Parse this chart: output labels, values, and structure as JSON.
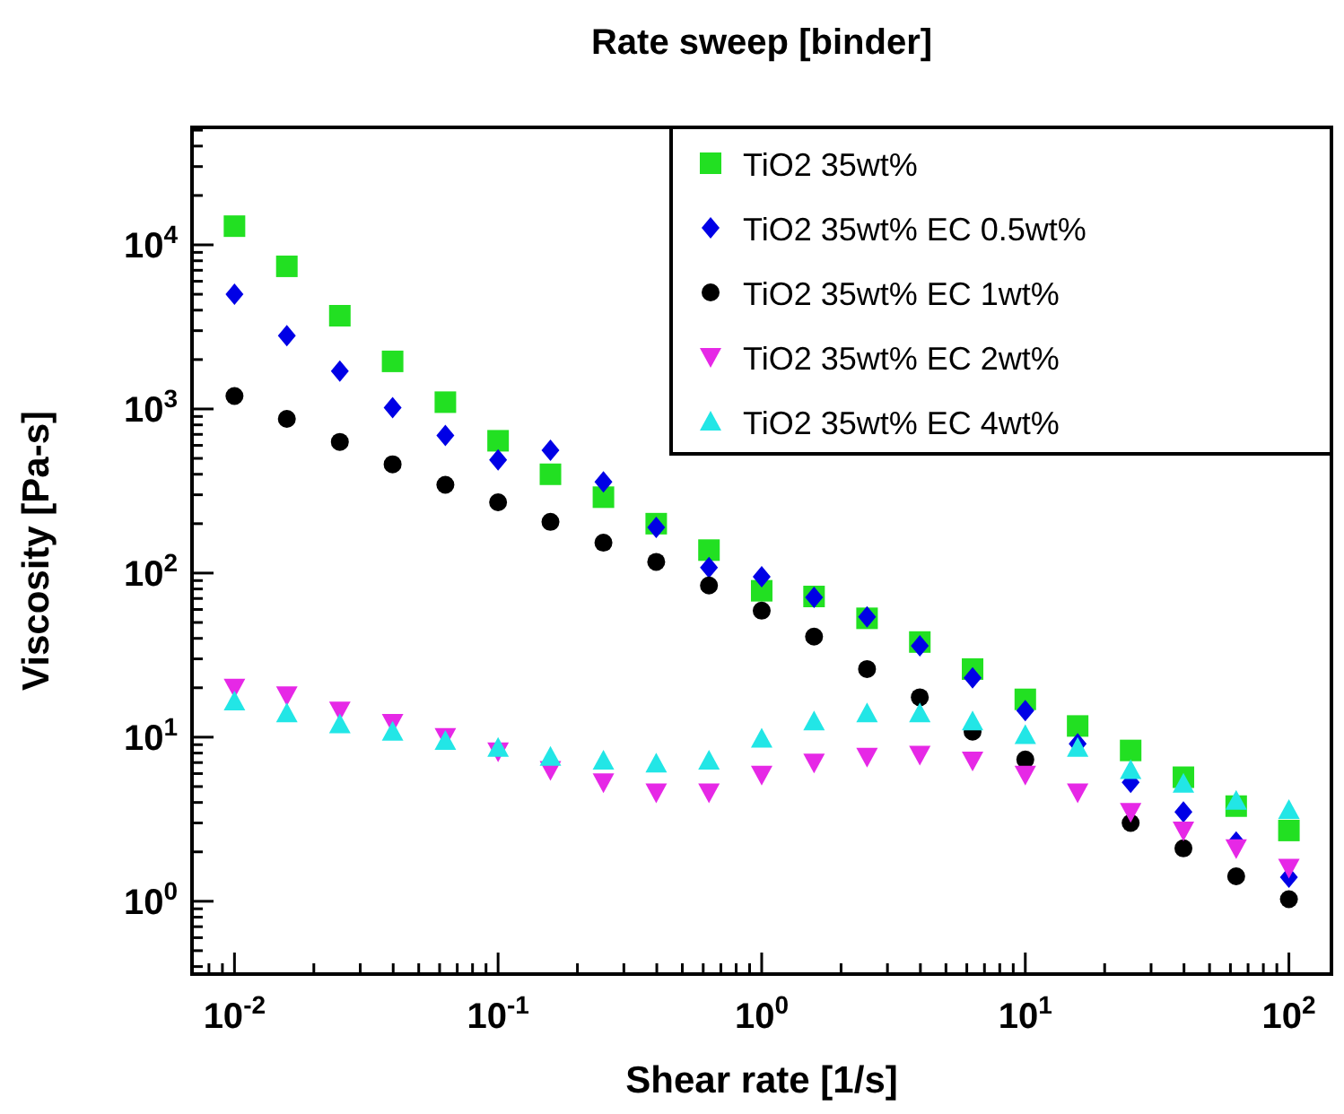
{
  "chart_data": {
    "type": "scatter",
    "title": "Rate sweep [binder]",
    "xlabel": "Shear rate [1/s]",
    "ylabel": "Viscosity [Pa-s]",
    "log": "xy",
    "grid": false,
    "legend": "top right",
    "xlim": [
      0.0069,
      145
    ],
    "ylim": [
      0.36,
      52000
    ],
    "xticks": [
      {
        "value": 0.008,
        "label": null
      },
      {
        "value": 0.009,
        "label": null
      },
      {
        "value": 0.01,
        "label": "10$^{-2}$"
      },
      {
        "value": 0.02,
        "label": null
      },
      {
        "value": 0.03,
        "label": null
      },
      {
        "value": 0.04,
        "label": null
      },
      {
        "value": 0.05,
        "label": null
      },
      {
        "value": 0.06,
        "label": null
      },
      {
        "value": 0.07,
        "label": null
      },
      {
        "value": 0.08,
        "label": null
      },
      {
        "value": 0.09,
        "label": null
      },
      {
        "value": 0.1,
        "label": "10$^{-1}$"
      },
      {
        "value": 0.2,
        "label": null
      },
      {
        "value": 0.3,
        "label": null
      },
      {
        "value": 0.4,
        "label": null
      },
      {
        "value": 0.5,
        "label": null
      },
      {
        "value": 0.6,
        "label": null
      },
      {
        "value": 0.7,
        "label": null
      },
      {
        "value": 0.8,
        "label": null
      },
      {
        "value": 0.9,
        "label": null
      },
      {
        "value": 1,
        "label": "10$^{0}$"
      },
      {
        "value": 2,
        "label": null
      },
      {
        "value": 3,
        "label": null
      },
      {
        "value": 4,
        "label": null
      },
      {
        "value": 5,
        "label": null
      },
      {
        "value": 6,
        "label": null
      },
      {
        "value": 7,
        "label": null
      },
      {
        "value": 8,
        "label": null
      },
      {
        "value": 9,
        "label": null
      },
      {
        "value": 10,
        "label": "10$^{1}$"
      },
      {
        "value": 20,
        "label": null
      },
      {
        "value": 30,
        "label": null
      },
      {
        "value": 40,
        "label": null
      },
      {
        "value": 50,
        "label": null
      },
      {
        "value": 60,
        "label": null
      },
      {
        "value": 70,
        "label": null
      },
      {
        "value": 80,
        "label": null
      },
      {
        "value": 90,
        "label": null
      },
      {
        "value": 100,
        "label": "10$^{2}$"
      }
    ],
    "yticks": [
      {
        "value": 0.4,
        "label": null
      },
      {
        "value": 0.5,
        "label": null
      },
      {
        "value": 0.6,
        "label": null
      },
      {
        "value": 0.7,
        "label": null
      },
      {
        "value": 0.8,
        "label": null
      },
      {
        "value": 0.9,
        "label": null
      },
      {
        "value": 1,
        "label": "10$^{0}$"
      },
      {
        "value": 2,
        "label": null
      },
      {
        "value": 3,
        "label": null
      },
      {
        "value": 4,
        "label": null
      },
      {
        "value": 5,
        "label": null
      },
      {
        "value": 6,
        "label": null
      },
      {
        "value": 7,
        "label": null
      },
      {
        "value": 8,
        "label": null
      },
      {
        "value": 9,
        "label": null
      },
      {
        "value": 10,
        "label": "10$^{1}$"
      },
      {
        "value": 20,
        "label": null
      },
      {
        "value": 30,
        "label": null
      },
      {
        "value": 40,
        "label": null
      },
      {
        "value": 50,
        "label": null
      },
      {
        "value": 60,
        "label": null
      },
      {
        "value": 70,
        "label": null
      },
      {
        "value": 80,
        "label": null
      },
      {
        "value": 90,
        "label": null
      },
      {
        "value": 100,
        "label": "10$^{2}$"
      },
      {
        "value": 200,
        "label": null
      },
      {
        "value": 300,
        "label": null
      },
      {
        "value": 400,
        "label": null
      },
      {
        "value": 500,
        "label": null
      },
      {
        "value": 600,
        "label": null
      },
      {
        "value": 700,
        "label": null
      },
      {
        "value": 800,
        "label": null
      },
      {
        "value": 900,
        "label": null
      },
      {
        "value": 1000,
        "label": "10$^{3}$"
      },
      {
        "value": 2000,
        "label": null
      },
      {
        "value": 3000,
        "label": null
      },
      {
        "value": 4000,
        "label": null
      },
      {
        "value": 5000,
        "label": null
      },
      {
        "value": 6000,
        "label": null
      },
      {
        "value": 7000,
        "label": null
      },
      {
        "value": 8000,
        "label": null
      },
      {
        "value": 9000,
        "label": null
      },
      {
        "value": 10000,
        "label": "10$^{4}$"
      },
      {
        "value": 20000,
        "label": null
      },
      {
        "value": 30000,
        "label": null
      },
      {
        "value": 40000,
        "label": null
      },
      {
        "value": 50000,
        "label": null
      }
    ],
    "x": [
      0.01,
      0.0158,
      0.0251,
      0.0398,
      0.0631,
      0.1,
      0.158,
      0.251,
      0.398,
      0.631,
      1,
      1.58,
      2.51,
      3.98,
      6.31,
      10,
      15.8,
      25.1,
      39.8,
      63.1,
      100
    ],
    "series": [
      {
        "name": "TiO2 35wt%",
        "color": "#22e022",
        "marker": "square",
        "values": [
          13000,
          7400,
          3700,
          1950,
          1100,
          640,
          400,
          290,
          200,
          138,
          78,
          72,
          53,
          38,
          26,
          17,
          11.7,
          8.3,
          5.7,
          3.8,
          2.7
        ]
      },
      {
        "name": "TiO2 35wt% EC 0.5wt%",
        "color": "#0000e6",
        "marker": "diamond",
        "values": [
          5000,
          2800,
          1700,
          1020,
          690,
          490,
          560,
          360,
          190,
          108,
          95,
          71,
          54,
          36,
          23,
          14.5,
          9.1,
          5.3,
          3.5,
          2.3,
          1.4
        ]
      },
      {
        "name": "TiO2 35wt% EC 1wt%",
        "color": "#000000",
        "marker": "circle",
        "values": [
          1200,
          870,
          630,
          460,
          345,
          270,
          205,
          153,
          117,
          84,
          59,
          41,
          26,
          17.5,
          10.8,
          7.3,
          null,
          3.0,
          2.1,
          1.42,
          1.03
        ]
      },
      {
        "name": "TiO2 35wt% EC 2wt%",
        "color": "#e628e6",
        "marker": "triangle-down",
        "values": [
          20,
          18,
          14.5,
          12.2,
          10,
          8.2,
          6.3,
          5.3,
          4.6,
          4.6,
          5.9,
          7.0,
          7.6,
          7.8,
          7.2,
          5.9,
          4.6,
          3.5,
          2.7,
          2.1,
          1.6
        ]
      },
      {
        "name": "TiO2 35wt% EC 4wt%",
        "color": "#22e6e6",
        "marker": "triangle",
        "values": [
          16.5,
          14,
          12,
          10.8,
          9.5,
          8.6,
          7.6,
          7.2,
          6.9,
          7.2,
          9.8,
          12.5,
          14,
          14,
          12.5,
          10.3,
          8.6,
          6.3,
          5.2,
          4.1,
          3.6
        ]
      }
    ]
  }
}
